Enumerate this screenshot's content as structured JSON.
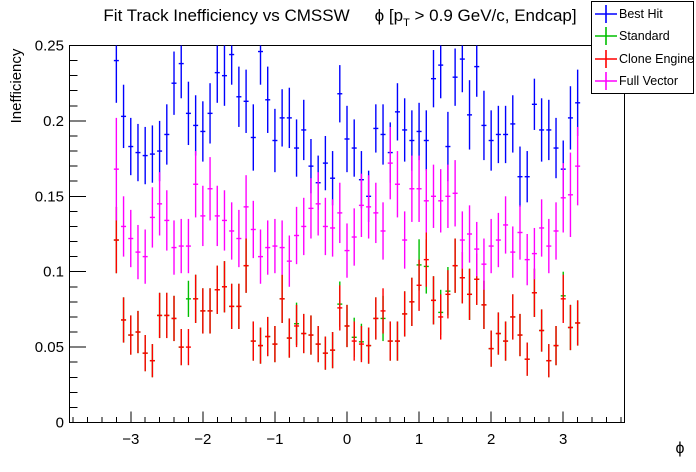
{
  "title": {
    "part1": "Fit Track Inefficiency vs CMSSW",
    "part2_prefix": "ϕ [p",
    "part2_sub": "T",
    "part2_suffix": " > 0.9 GeV/c, Endcap]"
  },
  "axes": {
    "y": {
      "label": "Inefficiency",
      "min": 0,
      "max": 0.25,
      "major_ticks": [
        0,
        0.05,
        0.1,
        0.15,
        0.2,
        0.25
      ],
      "tick_labels": [
        "0",
        "0.05",
        "0.1",
        "0.15",
        "0.2",
        "0.25"
      ],
      "minor_step": 0.01
    },
    "x": {
      "label": "ϕ",
      "min": -3.85,
      "max": 3.85,
      "major_ticks": [
        -3,
        -2,
        -1,
        0,
        1,
        2,
        3
      ],
      "tick_labels": [
        "−3",
        "−2",
        "−1",
        "0",
        "1",
        "2",
        "3"
      ],
      "minor_step": 0.2
    }
  },
  "legend": {
    "items": [
      {
        "label": "Best Hit",
        "color": "#0000ff"
      },
      {
        "label": "Standard",
        "color": "#00bf00"
      },
      {
        "label": "Clone Engine",
        "color": "#ff0000"
      },
      {
        "label": "Full Vector",
        "color": "#ff00ff"
      }
    ]
  },
  "chart_data": {
    "type": "scatter",
    "title": "Fit Track Inefficiency vs CMSSW  ϕ [p_{T} > 0.9 GeV/c, Endcap]",
    "xlabel": "ϕ",
    "ylabel": "Inefficiency",
    "xlim": [
      -3.85,
      3.85
    ],
    "ylim": [
      0,
      0.25
    ],
    "bin_width": 0.1,
    "grid": false,
    "legend_position": "top-right",
    "x": [
      -3.2,
      -3.1,
      -3.0,
      -2.9,
      -2.8,
      -2.7,
      -2.6,
      -2.5,
      -2.4,
      -2.3,
      -2.2,
      -2.1,
      -2.0,
      -1.9,
      -1.8,
      -1.7,
      -1.6,
      -1.5,
      -1.4,
      -1.3,
      -1.2,
      -1.1,
      -1.0,
      -0.9,
      -0.8,
      -0.7,
      -0.6,
      -0.5,
      -0.4,
      -0.3,
      -0.2,
      -0.1,
      0.0,
      0.1,
      0.2,
      0.3,
      0.4,
      0.5,
      0.6,
      0.7,
      0.8,
      0.9,
      1.0,
      1.1,
      1.2,
      1.3,
      1.4,
      1.5,
      1.6,
      1.7,
      1.8,
      1.9,
      2.0,
      2.1,
      2.2,
      2.3,
      2.4,
      2.5,
      2.6,
      2.7,
      2.8,
      2.9,
      3.0,
      3.1,
      3.2
    ],
    "series": [
      {
        "name": "Best Hit",
        "color": "#0000ff",
        "y": [
          0.24,
          0.203,
          0.183,
          0.179,
          0.177,
          0.178,
          0.18,
          0.191,
          0.225,
          0.238,
          0.205,
          0.197,
          0.193,
          0.205,
          0.232,
          0.23,
          0.244,
          0.216,
          0.213,
          0.189,
          0.246,
          0.214,
          0.187,
          0.202,
          0.202,
          0.182,
          0.194,
          0.17,
          0.159,
          0.172,
          0.162,
          0.218,
          0.188,
          0.182,
          0.161,
          0.15,
          0.195,
          0.191,
          0.179,
          0.206,
          0.194,
          0.187,
          0.193,
          0.187,
          0.228,
          0.237,
          0.183,
          0.229,
          0.241,
          0.204,
          0.236,
          0.197,
          0.187,
          0.191,
          0.191,
          0.198,
          0.163,
          0.163,
          0.211,
          0.194,
          0.194,
          0.182,
          0.168,
          0.202,
          0.212
        ],
        "ey": [
          0.028,
          0.021,
          0.019,
          0.019,
          0.019,
          0.019,
          0.02,
          0.02,
          0.021,
          0.023,
          0.021,
          0.02,
          0.02,
          0.02,
          0.02,
          0.02,
          0.02,
          0.02,
          0.021,
          0.022,
          0.022,
          0.022,
          0.021,
          0.019,
          0.02,
          0.019,
          0.02,
          0.018,
          0.018,
          0.018,
          0.018,
          0.019,
          0.022,
          0.019,
          0.019,
          0.017,
          0.016,
          0.02,
          0.02,
          0.019,
          0.021,
          0.02,
          0.019,
          0.02,
          0.019,
          0.022,
          0.023,
          0.019,
          0.022,
          0.023,
          0.02,
          0.023,
          0.02,
          0.019,
          0.019,
          0.019,
          0.02,
          0.017,
          0.017,
          0.021,
          0.02,
          0.02,
          0.019,
          0.021,
          0.022
        ]
      },
      {
        "name": "Standard",
        "color": "#00bf00",
        "y": [
          0.121,
          0.068,
          0.058,
          0.06,
          0.046,
          0.041,
          0.071,
          0.071,
          0.069,
          0.05,
          0.082,
          0.082,
          0.074,
          0.074,
          0.088,
          0.09,
          0.077,
          0.077,
          0.104,
          0.054,
          0.051,
          0.057,
          0.052,
          0.082,
          0.056,
          0.0655,
          0.059,
          0.058,
          0.052,
          0.046,
          0.048,
          0.0785,
          0.064,
          0.0565,
          0.0535,
          0.051,
          0.069,
          0.069,
          0.054,
          0.054,
          0.072,
          0.08,
          0.1045,
          0.1035,
          0.081,
          0.073,
          0.0871,
          0.104,
          0.096,
          0.085,
          0.095,
          0.078,
          0.049,
          0.059,
          0.054,
          0.07,
          0.058,
          0.042,
          0.086,
          0.061,
          0.041,
          0.051,
          0.084,
          0.063,
          0.066
        ],
        "ey": [
          0.022,
          0.015,
          0.013,
          0.014,
          0.012,
          0.011,
          0.015,
          0.015,
          0.015,
          0.012,
          0.012,
          0.016,
          0.015,
          0.015,
          0.016,
          0.017,
          0.015,
          0.015,
          0.018,
          0.013,
          0.012,
          0.013,
          0.012,
          0.016,
          0.013,
          0.014,
          0.013,
          0.013,
          0.012,
          0.011,
          0.012,
          0.015,
          0.014,
          0.013,
          0.012,
          0.012,
          0.014,
          0.015,
          0.013,
          0.013,
          0.015,
          0.016,
          0.017,
          0.018,
          0.016,
          0.015,
          0.016,
          0.018,
          0.017,
          0.017,
          0.017,
          0.016,
          0.012,
          0.014,
          0.013,
          0.015,
          0.014,
          0.011,
          0.016,
          0.014,
          0.011,
          0.013,
          0.016,
          0.015,
          0.015
        ]
      },
      {
        "name": "Clone Engine",
        "color": "#ff0000",
        "y": [
          0.121,
          0.068,
          0.058,
          0.06,
          0.046,
          0.041,
          0.071,
          0.071,
          0.069,
          0.05,
          0.05,
          0.082,
          0.074,
          0.074,
          0.088,
          0.09,
          0.077,
          0.077,
          0.104,
          0.054,
          0.051,
          0.057,
          0.052,
          0.082,
          0.056,
          0.064,
          0.059,
          0.058,
          0.052,
          0.046,
          0.048,
          0.076,
          0.064,
          0.054,
          0.052,
          0.051,
          0.069,
          0.074,
          0.054,
          0.054,
          0.072,
          0.08,
          0.091,
          0.108,
          0.081,
          0.07,
          0.085,
          0.104,
          0.096,
          0.085,
          0.095,
          0.078,
          0.049,
          0.059,
          0.054,
          0.07,
          0.058,
          0.042,
          0.086,
          0.061,
          0.041,
          0.051,
          0.082,
          0.063,
          0.066
        ],
        "ey": [
          0.022,
          0.015,
          0.013,
          0.014,
          0.012,
          0.011,
          0.015,
          0.015,
          0.015,
          0.012,
          0.012,
          0.016,
          0.015,
          0.015,
          0.016,
          0.017,
          0.015,
          0.015,
          0.018,
          0.013,
          0.012,
          0.013,
          0.012,
          0.016,
          0.013,
          0.014,
          0.013,
          0.013,
          0.012,
          0.011,
          0.012,
          0.015,
          0.014,
          0.013,
          0.012,
          0.012,
          0.014,
          0.015,
          0.013,
          0.013,
          0.015,
          0.016,
          0.017,
          0.018,
          0.016,
          0.015,
          0.016,
          0.018,
          0.017,
          0.017,
          0.017,
          0.016,
          0.012,
          0.014,
          0.013,
          0.015,
          0.014,
          0.011,
          0.016,
          0.014,
          0.011,
          0.013,
          0.016,
          0.015,
          0.015
        ]
      },
      {
        "name": "Full Vector",
        "color": "#ff00ff",
        "y": [
          0.168,
          0.13,
          0.122,
          0.113,
          0.11,
          0.136,
          0.145,
          0.134,
          0.116,
          0.117,
          0.117,
          0.158,
          0.137,
          0.155,
          0.137,
          0.134,
          0.127,
          0.122,
          0.143,
          0.128,
          0.11,
          0.116,
          0.117,
          0.116,
          0.107,
          0.124,
          0.13,
          0.142,
          0.145,
          0.13,
          0.129,
          0.139,
          0.114,
          0.123,
          0.144,
          0.143,
          0.139,
          0.127,
          0.172,
          0.158,
          0.121,
          0.155,
          0.155,
          0.147,
          0.15,
          0.147,
          0.15,
          0.152,
          0.121,
          0.125,
          0.115,
          0.105,
          0.117,
          0.121,
          0.131,
          0.113,
          0.126,
          0.108,
          0.112,
          0.129,
          0.117,
          0.127,
          0.149,
          0.151,
          0.17
        ],
        "ey": [
          0.034,
          0.02,
          0.019,
          0.018,
          0.018,
          0.02,
          0.021,
          0.02,
          0.018,
          0.018,
          0.018,
          0.022,
          0.02,
          0.021,
          0.02,
          0.02,
          0.019,
          0.019,
          0.021,
          0.019,
          0.018,
          0.018,
          0.018,
          0.018,
          0.017,
          0.019,
          0.019,
          0.02,
          0.021,
          0.019,
          0.019,
          0.02,
          0.018,
          0.019,
          0.021,
          0.021,
          0.02,
          0.019,
          0.024,
          0.022,
          0.019,
          0.022,
          0.022,
          0.021,
          0.021,
          0.021,
          0.021,
          0.022,
          0.019,
          0.019,
          0.018,
          0.017,
          0.018,
          0.018,
          0.019,
          0.017,
          0.018,
          0.017,
          0.017,
          0.019,
          0.018,
          0.019,
          0.023,
          0.028,
          0.026
        ]
      }
    ]
  }
}
